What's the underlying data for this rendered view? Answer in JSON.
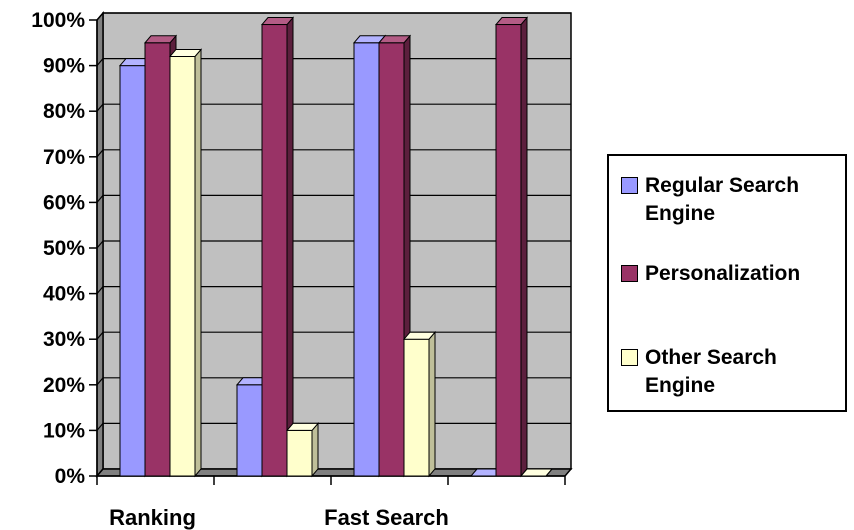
{
  "chart_data": {
    "type": "bar",
    "categories": [
      "Ranking",
      "",
      "Fast Search",
      ""
    ],
    "series": [
      {
        "name": "Regular Search Engine",
        "values": [
          90,
          20,
          95,
          0
        ]
      },
      {
        "name": "Personalization",
        "values": [
          95,
          99,
          95,
          99
        ]
      },
      {
        "name": "Other Search Engine",
        "values": [
          92,
          10,
          30,
          0
        ]
      }
    ],
    "y_ticks": [
      "0%",
      "10%",
      "20%",
      "30%",
      "40%",
      "50%",
      "60%",
      "70%",
      "80%",
      "90%",
      "100%"
    ],
    "ylim": [
      0,
      100
    ],
    "grid": true,
    "legend_position": "right",
    "colors": {
      "series": [
        "#9999FF",
        "#993366",
        "#FFFFCC"
      ],
      "series_top": [
        "#b3b3ff",
        "#b35c85",
        "#ffffe0"
      ],
      "series_side": [
        "#5c5c99",
        "#5c1f3d",
        "#bfbf99"
      ],
      "wall": "#C0C0C0",
      "floor": "#808080",
      "grid": "#000000"
    }
  },
  "legend": {
    "items": [
      {
        "label": "Regular Search Engine"
      },
      {
        "label": "Personalization"
      },
      {
        "label": "Other Search Engine"
      }
    ]
  }
}
